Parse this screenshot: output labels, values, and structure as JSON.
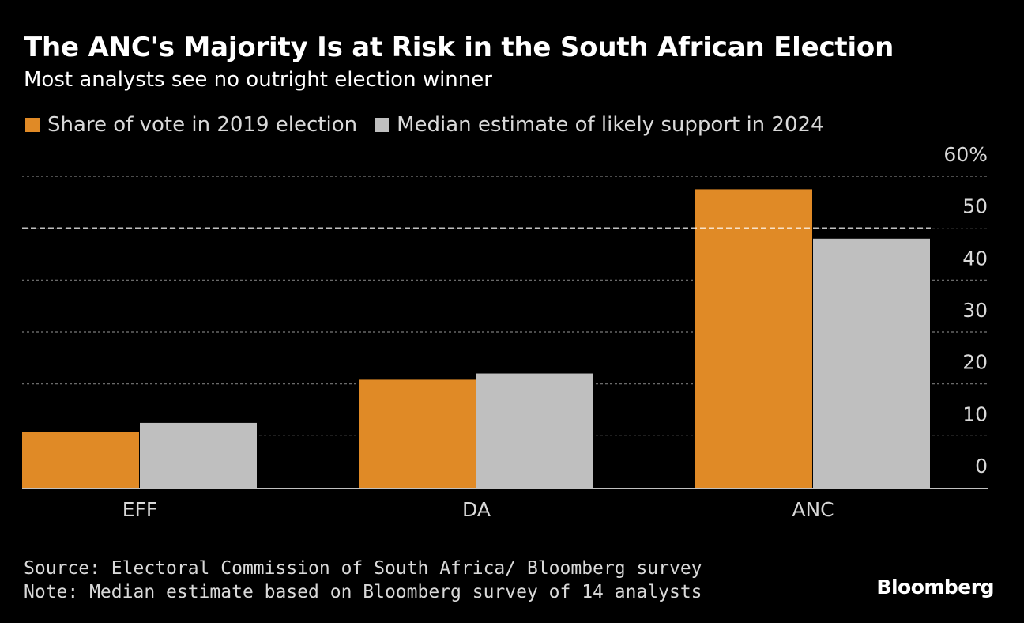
{
  "header": {
    "title": "The ANC's Majority Is at Risk in the South African Election",
    "subtitle": "Most analysts see no outright election winner"
  },
  "legend": {
    "items": [
      {
        "label": "Share of vote in 2019 election",
        "color": "#e08a26"
      },
      {
        "label": "Median estimate of likely support in 2024",
        "color": "#bfbfbf"
      }
    ]
  },
  "chart_data": {
    "type": "bar",
    "categories": [
      "EFF",
      "DA",
      "ANC"
    ],
    "series": [
      {
        "name": "Share of vote in 2019 election",
        "values": [
          10.8,
          20.8,
          57.5
        ],
        "color": "#e08a26"
      },
      {
        "name": "Median estimate of likely support in 2024",
        "values": [
          12.5,
          22,
          48
        ],
        "color": "#bfbfbf"
      }
    ],
    "ylim": [
      0,
      60
    ],
    "yticks": [
      0,
      10,
      20,
      30,
      40,
      50,
      60
    ],
    "ytick_labels": [
      "0",
      "10",
      "20",
      "30",
      "40",
      "50",
      "60%"
    ],
    "y_axis_position": "right",
    "grid": true,
    "reference_line": {
      "value": 50,
      "style": "dashed"
    },
    "legend_position": "top-left"
  },
  "footer": {
    "source": "Source: Electoral Commission of South Africa/ Bloomberg survey",
    "note": "Note: Median estimate based on Bloomberg survey of 14 analysts",
    "brand": "Bloomberg"
  }
}
